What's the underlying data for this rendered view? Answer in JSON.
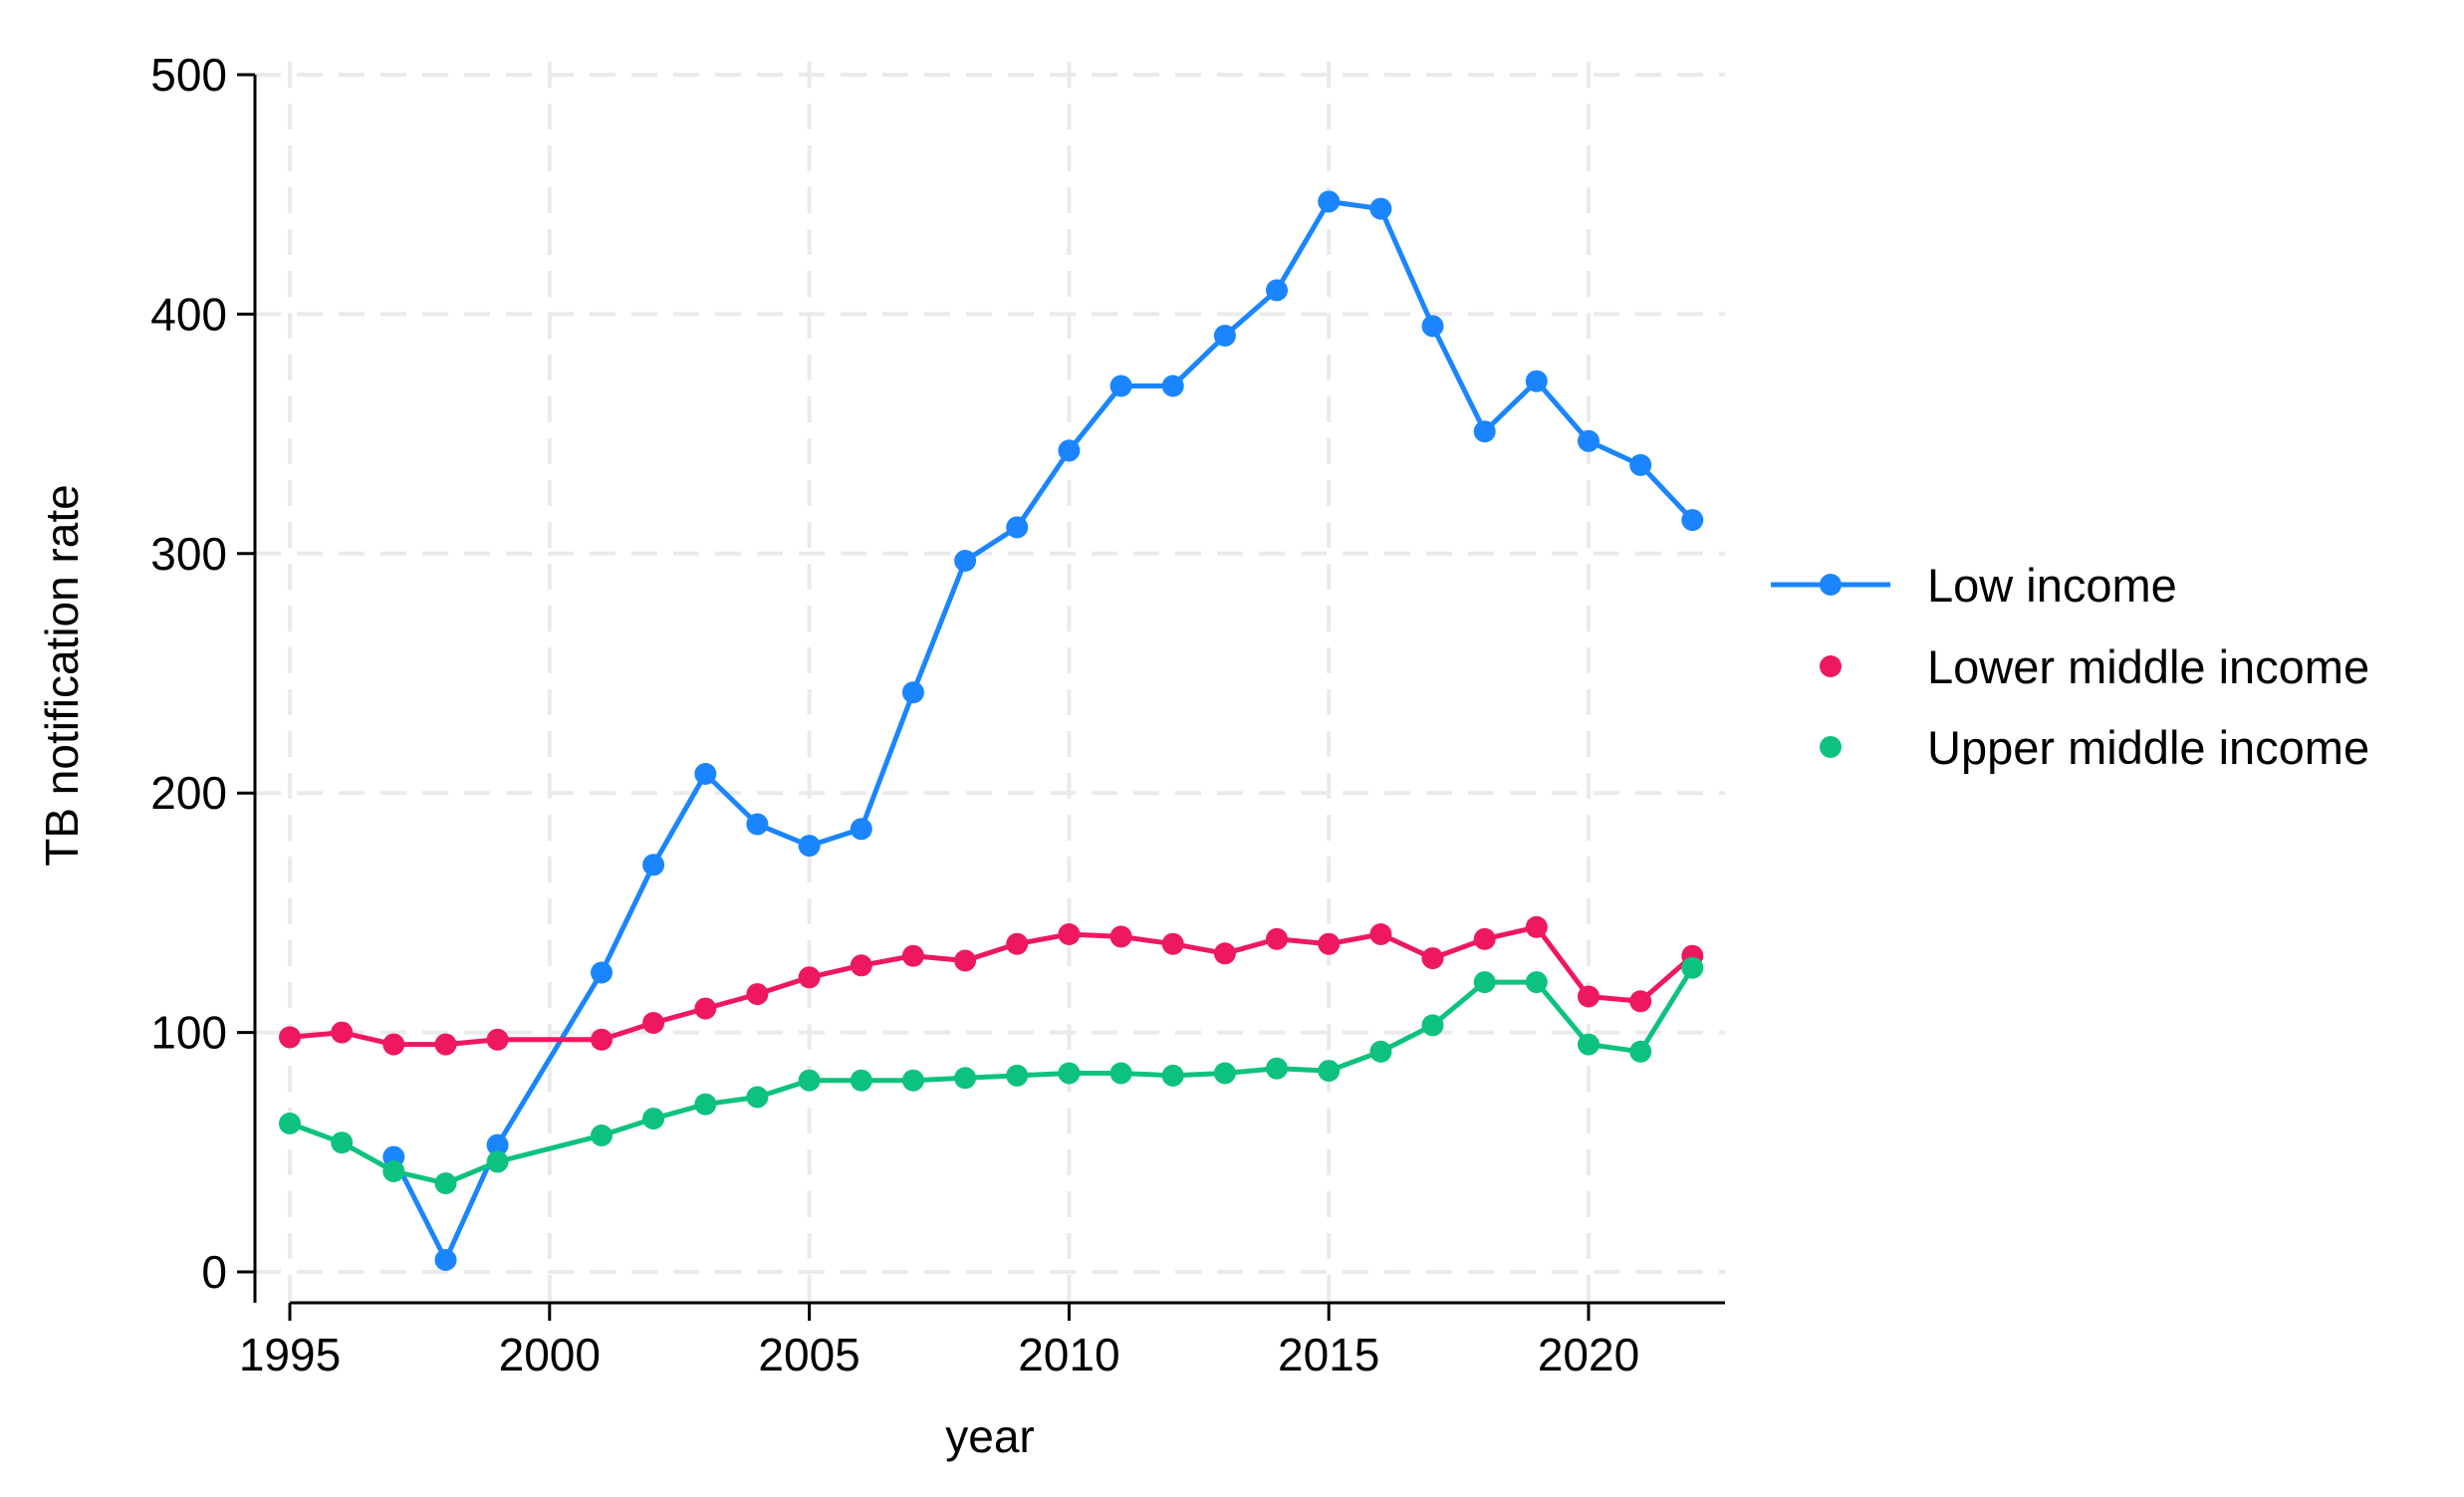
{
  "chart_data": {
    "type": "line",
    "title": "",
    "xlabel": "year",
    "ylabel": "TB notification rate",
    "xlim": [
      1995,
      2022
    ],
    "ylim": [
      0,
      500
    ],
    "x_ticks": [
      1995,
      2000,
      2005,
      2010,
      2015,
      2020
    ],
    "y_ticks": [
      0,
      100,
      200,
      300,
      400,
      500
    ],
    "grid": true,
    "legend_position": "right",
    "series": [
      {
        "name": "Low income",
        "color": "#1A85FF",
        "line_in_legend": true,
        "points": [
          {
            "x": 1997,
            "y": 48
          },
          {
            "x": 1998,
            "y": 5
          },
          {
            "x": 1999,
            "y": 53
          },
          {
            "x": 2001,
            "y": 125
          },
          {
            "x": 2002,
            "y": 170
          },
          {
            "x": 2003,
            "y": 208
          },
          {
            "x": 2004,
            "y": 187
          },
          {
            "x": 2005,
            "y": 178
          },
          {
            "x": 2006,
            "y": 185
          },
          {
            "x": 2007,
            "y": 242
          },
          {
            "x": 2008,
            "y": 297
          },
          {
            "x": 2009,
            "y": 311
          },
          {
            "x": 2010,
            "y": 343
          },
          {
            "x": 2011,
            "y": 370
          },
          {
            "x": 2012,
            "y": 370
          },
          {
            "x": 2013,
            "y": 391
          },
          {
            "x": 2014,
            "y": 410
          },
          {
            "x": 2015,
            "y": 447
          },
          {
            "x": 2016,
            "y": 444
          },
          {
            "x": 2017,
            "y": 395
          },
          {
            "x": 2018,
            "y": 351
          },
          {
            "x": 2019,
            "y": 372
          },
          {
            "x": 2020,
            "y": 347
          },
          {
            "x": 2021,
            "y": 337
          },
          {
            "x": 2022,
            "y": 314
          }
        ]
      },
      {
        "name": "Lower middle income",
        "color": "#EE1860",
        "line_in_legend": false,
        "points": [
          {
            "x": 1995,
            "y": 98
          },
          {
            "x": 1996,
            "y": 100
          },
          {
            "x": 1997,
            "y": 95
          },
          {
            "x": 1998,
            "y": 95
          },
          {
            "x": 1999,
            "y": 97
          },
          {
            "x": 2001,
            "y": 97
          },
          {
            "x": 2002,
            "y": 104
          },
          {
            "x": 2003,
            "y": 110
          },
          {
            "x": 2004,
            "y": 116
          },
          {
            "x": 2005,
            "y": 123
          },
          {
            "x": 2006,
            "y": 128
          },
          {
            "x": 2007,
            "y": 132
          },
          {
            "x": 2008,
            "y": 130
          },
          {
            "x": 2009,
            "y": 137
          },
          {
            "x": 2010,
            "y": 141
          },
          {
            "x": 2011,
            "y": 140
          },
          {
            "x": 2012,
            "y": 137
          },
          {
            "x": 2013,
            "y": 133
          },
          {
            "x": 2014,
            "y": 139
          },
          {
            "x": 2015,
            "y": 137
          },
          {
            "x": 2016,
            "y": 141
          },
          {
            "x": 2017,
            "y": 131
          },
          {
            "x": 2018,
            "y": 139
          },
          {
            "x": 2019,
            "y": 144
          },
          {
            "x": 2020,
            "y": 115
          },
          {
            "x": 2021,
            "y": 113
          },
          {
            "x": 2022,
            "y": 132
          }
        ]
      },
      {
        "name": "Upper middle income",
        "color": "#0DC27E",
        "line_in_legend": false,
        "points": [
          {
            "x": 1995,
            "y": 62
          },
          {
            "x": 1996,
            "y": 54
          },
          {
            "x": 1997,
            "y": 42
          },
          {
            "x": 1998,
            "y": 37
          },
          {
            "x": 1999,
            "y": 46
          },
          {
            "x": 2001,
            "y": 57
          },
          {
            "x": 2002,
            "y": 64
          },
          {
            "x": 2003,
            "y": 70
          },
          {
            "x": 2004,
            "y": 73
          },
          {
            "x": 2005,
            "y": 80
          },
          {
            "x": 2006,
            "y": 80
          },
          {
            "x": 2007,
            "y": 80
          },
          {
            "x": 2008,
            "y": 81
          },
          {
            "x": 2009,
            "y": 82
          },
          {
            "x": 2010,
            "y": 83
          },
          {
            "x": 2011,
            "y": 83
          },
          {
            "x": 2012,
            "y": 82
          },
          {
            "x": 2013,
            "y": 83
          },
          {
            "x": 2014,
            "y": 85
          },
          {
            "x": 2015,
            "y": 84
          },
          {
            "x": 2016,
            "y": 92
          },
          {
            "x": 2017,
            "y": 103
          },
          {
            "x": 2018,
            "y": 121
          },
          {
            "x": 2019,
            "y": 121
          },
          {
            "x": 2020,
            "y": 95
          },
          {
            "x": 2021,
            "y": 92
          },
          {
            "x": 2022,
            "y": 127
          }
        ]
      }
    ]
  }
}
